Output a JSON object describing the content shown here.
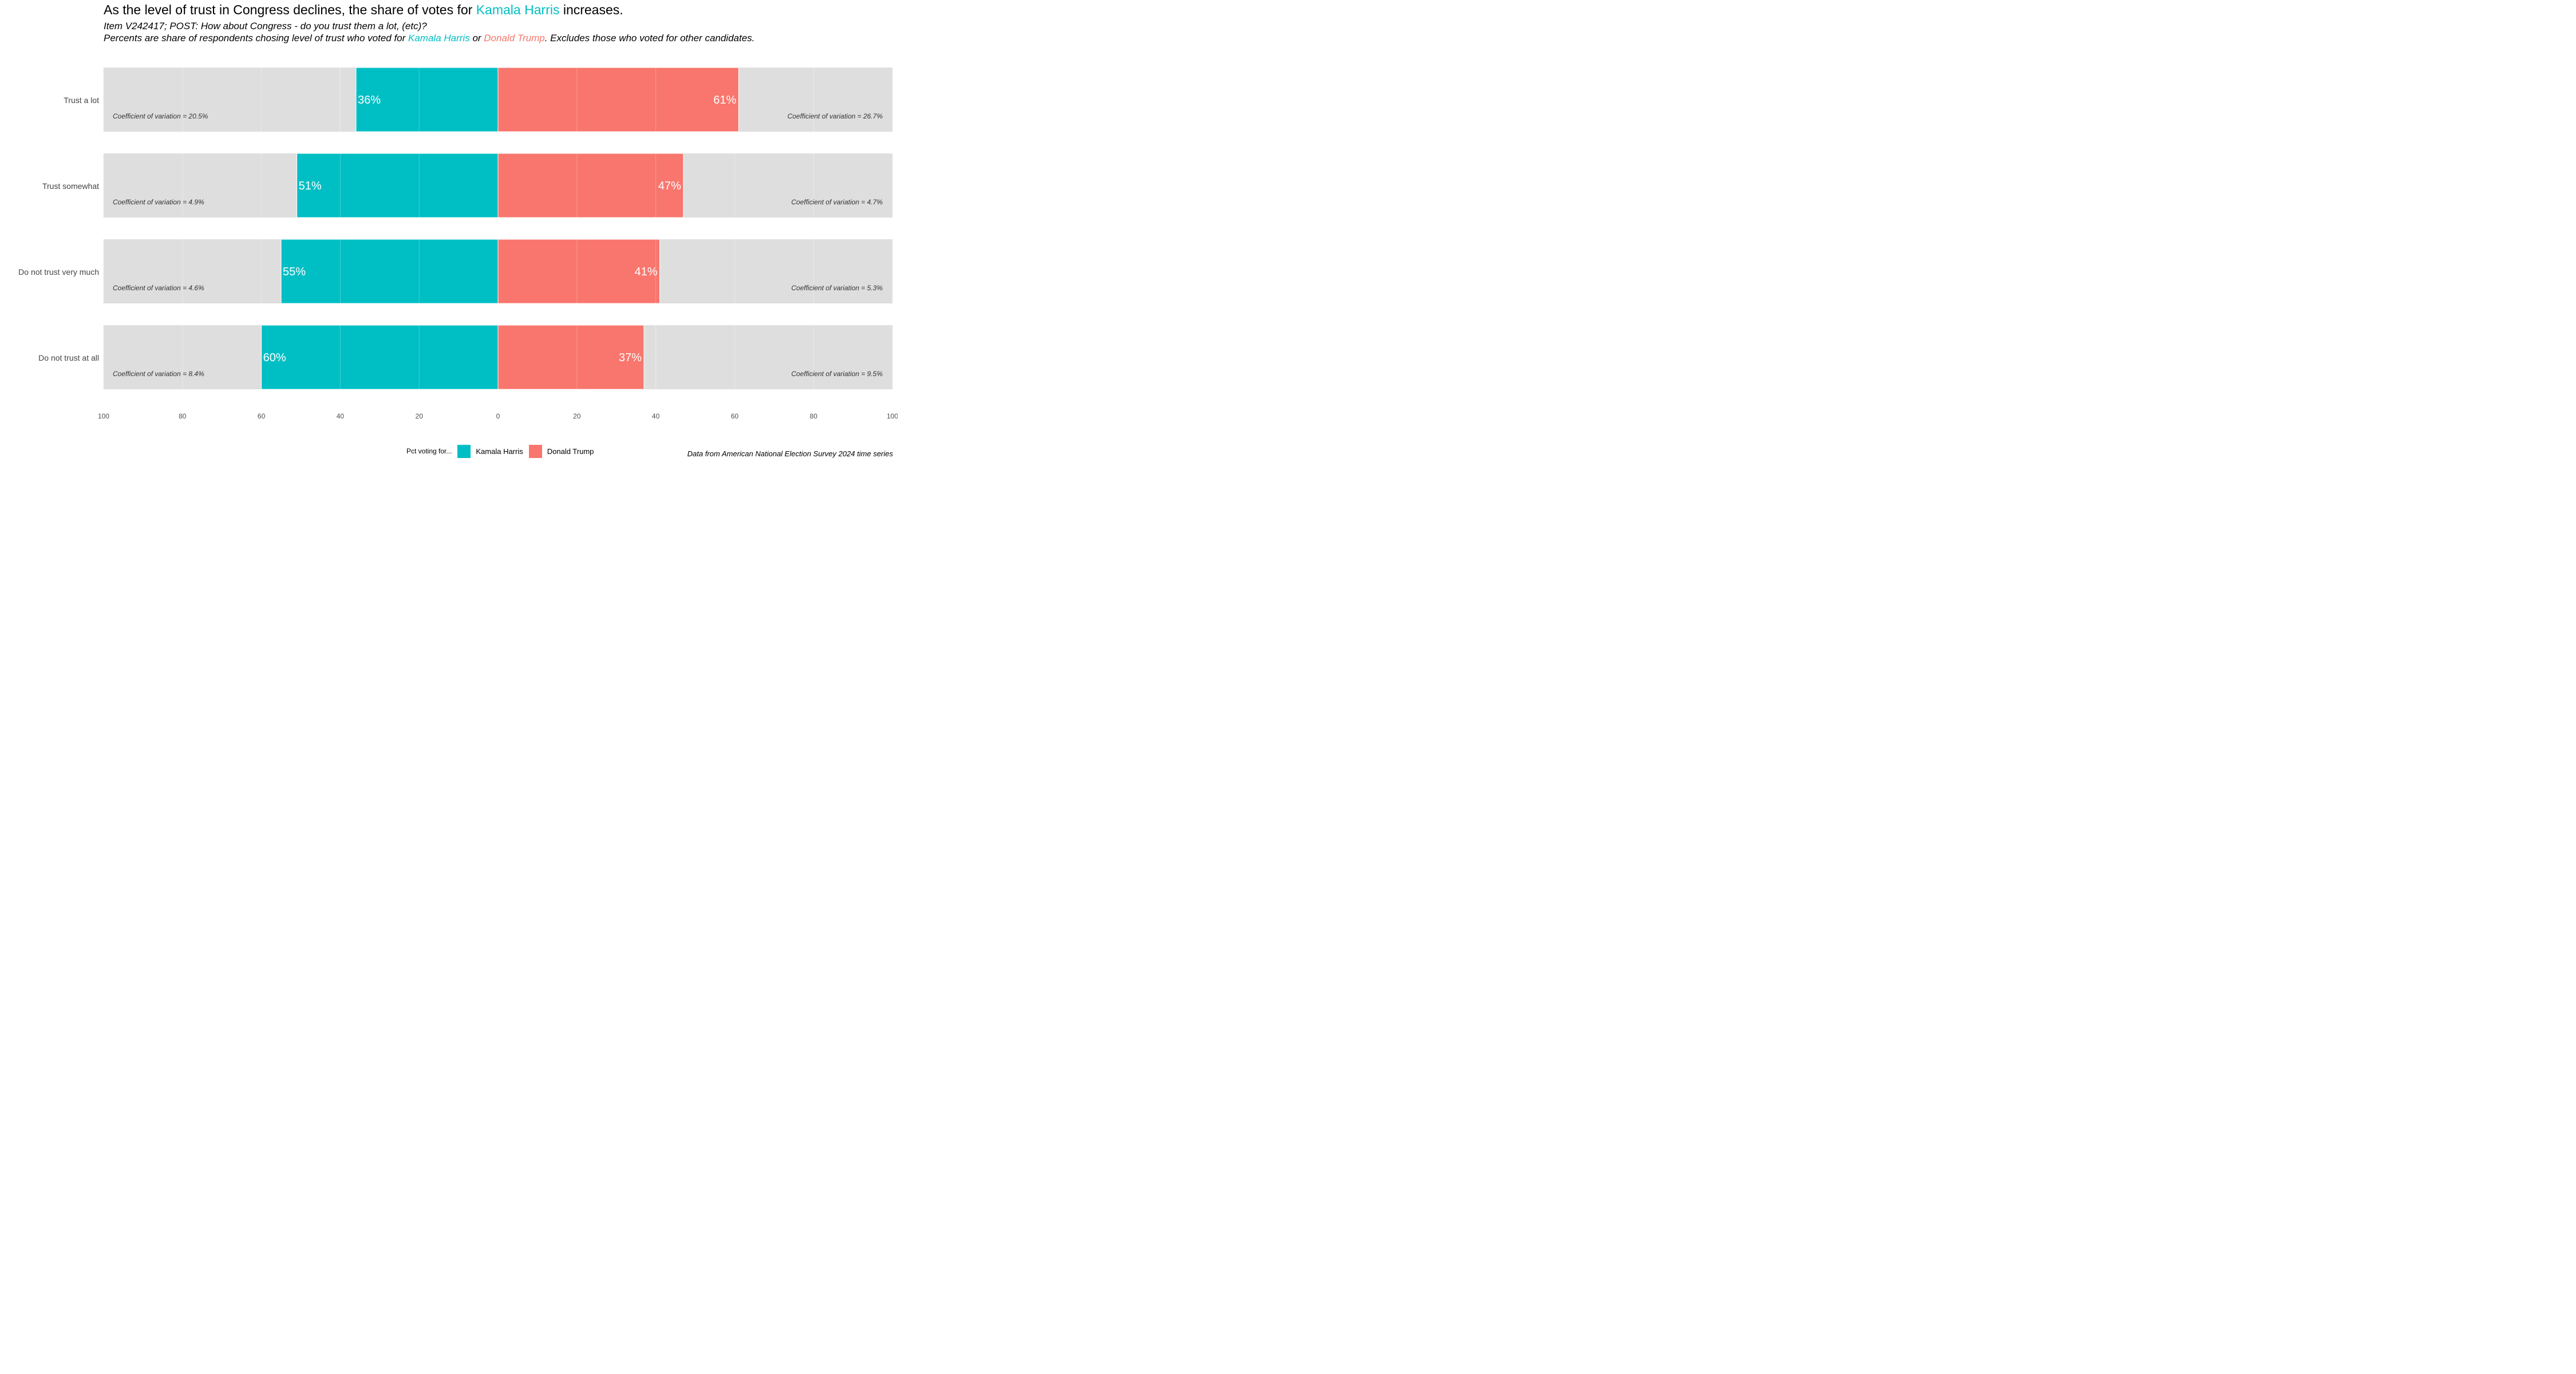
{
  "title": {
    "before": "As the level of trust in Congress declines, the share of votes for ",
    "highlight": "Kamala Harris",
    "after": " increases."
  },
  "subtitle": {
    "line1": "Item V242417; POST: How about Congress - do you trust them a lot, (etc)?",
    "line2_before": "Percents are share of respondents chosing level of trust who voted for ",
    "harris": "Kamala Harris",
    "or": " or ",
    "trump": "Donald Trump",
    "line2_after": ". Excludes those who voted for other candidates."
  },
  "legend": {
    "title": "Pct voting for...",
    "harris_label": "Kamala Harris",
    "trump_label": "Donald Trump"
  },
  "caption": "Data from American National Election Survey 2024 time series",
  "colors": {
    "harris": "#00BFC4",
    "trump": "#F8766D",
    "panel_bg": "#DEDEDE"
  },
  "chart_data": {
    "type": "bar",
    "orientation": "horizontal-diverging",
    "categories": [
      "Trust a lot",
      "Trust somewhat",
      "Do not trust very much",
      "Do not trust at all"
    ],
    "series": [
      {
        "name": "Kamala Harris",
        "values": [
          36,
          51,
          55,
          60
        ],
        "labels": [
          "36%",
          "51%",
          "55%",
          "60%"
        ],
        "cv_labels": [
          "Coefficient of variation = 20.5%",
          "Coefficient of variation = 4.9%",
          "Coefficient of variation = 4.6%",
          "Coefficient of variation = 8.4%"
        ]
      },
      {
        "name": "Donald Trump",
        "values": [
          61,
          47,
          41,
          37
        ],
        "labels": [
          "61%",
          "47%",
          "41%",
          "37%"
        ],
        "cv_labels": [
          "Coefficient of variation = 26.7%",
          "Coefficient of variation = 4.7%",
          "Coefficient of variation = 5.3%",
          "Coefficient of variation = 9.5%"
        ]
      }
    ],
    "xlim": [
      -100,
      100
    ],
    "x_ticks": [
      -100,
      -80,
      -60,
      -40,
      -20,
      0,
      20,
      40,
      60,
      80,
      100
    ],
    "x_tick_labels": [
      "100",
      "80",
      "60",
      "40",
      "20",
      "0",
      "20",
      "40",
      "60",
      "80",
      "100"
    ],
    "xlabel": "",
    "ylabel": "",
    "grid": true,
    "legend_position": "bottom"
  }
}
